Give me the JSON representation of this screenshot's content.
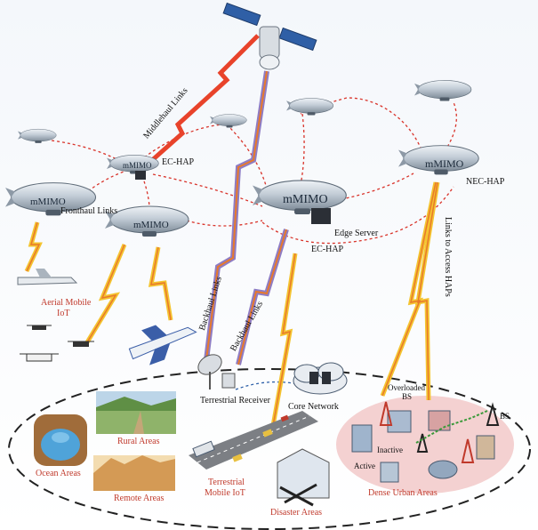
{
  "hap_labels": {
    "ec_hap_left": "EC-HAP",
    "ec_hap_center": "EC-HAP",
    "nec_hap": "NEC-HAP",
    "mmimo": "mMIMO",
    "edge_server": "Edge Server"
  },
  "links": {
    "midhaul": "Middlehaul Links",
    "fronthaul": "Fronthaul Links",
    "backhaul_1": "Backhaul Links",
    "backhaul_2": "Backhaul Links",
    "access": "Links to Access HAPs"
  },
  "ground": {
    "terrestrial_receiver": "Terrestrial Receiver",
    "core_network": "Core Network",
    "aerial_iot_line1": "Aerial Mobile",
    "aerial_iot_line2": "IoT",
    "rural": "Rural Areas",
    "remote": "Remote Areas",
    "ocean": "Ocean Areas",
    "terrestrial_iot_line1": "Terrestrial",
    "terrestrial_iot_line2": "Mobile IoT",
    "disaster": "Disaster Areas",
    "dense_urban": "Dense Urban Areas"
  },
  "bs_states": {
    "overloaded_line1": "Overloaded",
    "overloaded_line2": "BS",
    "bs": "BS",
    "inactive": "Inactive",
    "active": "Active"
  },
  "colors": {
    "area_label": "#c0392b",
    "dashed_link": "#d9342b",
    "airship_body": "#c9d4de",
    "lightning_yellow": "#f4c430",
    "lightning_orange": "#e8792b",
    "midhaul_red": "#e8432b",
    "backhaul_purple": "#8e7cc3",
    "urban_fill": "#f2c9c9"
  },
  "icons": [
    "satellite-icon",
    "airship-icon",
    "airplane-icon",
    "drone-icon",
    "receiver-dish-icon",
    "core-network-cloud-icon",
    "cell-tower-icon",
    "server-icon"
  ]
}
